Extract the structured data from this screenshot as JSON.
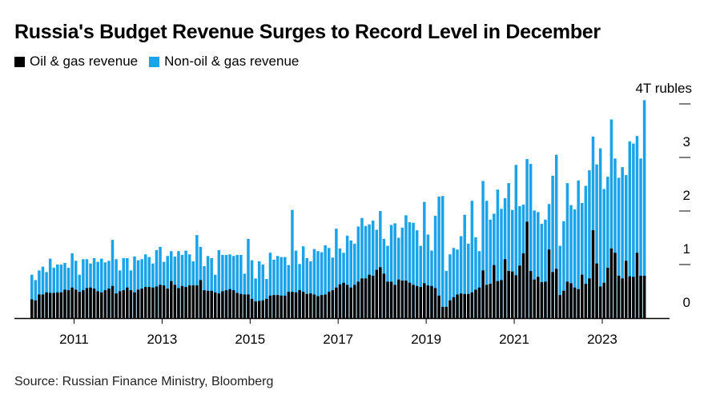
{
  "title": "Russia's Budget Revenue Surges to Record Level in December",
  "source": "Source: Russian Finance Ministry, Bloomberg",
  "chart_data": {
    "type": "bar",
    "stacked": true,
    "title": "Russia's Budget Revenue Surges to Record Level in December",
    "ylabel": "T rubles",
    "ylim": [
      0,
      4.1
    ],
    "y_ticks": [
      {
        "value": 0,
        "label": "0"
      },
      {
        "value": 1,
        "label": "1"
      },
      {
        "value": 2,
        "label": "2"
      },
      {
        "value": 3,
        "label": "3"
      },
      {
        "value": 4,
        "label": "4T rubles"
      }
    ],
    "x_ticks": [
      {
        "index": 12,
        "label": "2011"
      },
      {
        "index": 36,
        "label": "2013"
      },
      {
        "index": 60,
        "label": "2015"
      },
      {
        "index": 84,
        "label": "2017"
      },
      {
        "index": 108,
        "label": "2019"
      },
      {
        "index": 132,
        "label": "2021"
      },
      {
        "index": 156,
        "label": "2023"
      }
    ],
    "frequency": "monthly",
    "legend": "top-left",
    "colors": {
      "oil": "#000000",
      "non_oil": "#1aa3e8"
    },
    "series": [
      {
        "name": "Oil & gas revenue",
        "values": [
          0.35,
          0.33,
          0.44,
          0.44,
          0.48,
          0.47,
          0.47,
          0.48,
          0.48,
          0.53,
          0.52,
          0.57,
          0.53,
          0.49,
          0.52,
          0.56,
          0.57,
          0.55,
          0.5,
          0.48,
          0.52,
          0.55,
          0.6,
          0.46,
          0.5,
          0.52,
          0.57,
          0.52,
          0.48,
          0.53,
          0.55,
          0.58,
          0.58,
          0.57,
          0.59,
          0.62,
          0.61,
          0.55,
          0.69,
          0.62,
          0.56,
          0.6,
          0.58,
          0.61,
          0.61,
          0.61,
          0.71,
          0.52,
          0.51,
          0.51,
          0.48,
          0.46,
          0.5,
          0.52,
          0.54,
          0.52,
          0.47,
          0.45,
          0.44,
          0.44,
          0.36,
          0.31,
          0.32,
          0.33,
          0.36,
          0.42,
          0.43,
          0.43,
          0.42,
          0.42,
          0.49,
          0.49,
          0.48,
          0.52,
          0.49,
          0.45,
          0.46,
          0.44,
          0.41,
          0.43,
          0.44,
          0.49,
          0.52,
          0.57,
          0.63,
          0.66,
          0.62,
          0.57,
          0.62,
          0.68,
          0.74,
          0.74,
          0.81,
          0.79,
          0.9,
          0.95,
          0.83,
          0.68,
          0.68,
          0.62,
          0.72,
          0.7,
          0.7,
          0.66,
          0.62,
          0.6,
          0.58,
          0.65,
          0.61,
          0.6,
          0.56,
          0.42,
          0.21,
          0.21,
          0.33,
          0.39,
          0.44,
          0.46,
          0.45,
          0.45,
          0.48,
          0.53,
          0.57,
          0.89,
          0.62,
          0.64,
          0.99,
          0.69,
          0.71,
          1.1,
          0.88,
          0.87,
          0.8,
          0.98,
          1.21,
          1.8,
          0.88,
          0.72,
          0.77,
          0.67,
          0.68,
          1.28,
          0.86,
          0.92,
          0.43,
          0.51,
          0.68,
          0.65,
          0.57,
          0.54,
          0.81,
          0.64,
          0.74,
          1.64,
          1.02,
          0.59,
          0.66,
          0.94,
          1.3,
          1.22,
          0.79,
          0.74,
          1.07,
          0.78,
          0.77,
          1.22,
          0.79,
          0.79
        ]
      },
      {
        "name": "Non-oil & gas revenue",
        "stacked_totals": [
          0.81,
          0.71,
          0.89,
          0.96,
          0.86,
          1.11,
          0.94,
          1.0,
          1.0,
          1.03,
          0.94,
          1.21,
          1.07,
          0.81,
          1.1,
          1.1,
          1.02,
          1.12,
          1.05,
          1.11,
          1.04,
          1.07,
          1.46,
          1.1,
          0.89,
          1.12,
          1.12,
          0.89,
          1.15,
          1.08,
          1.1,
          1.19,
          1.14,
          1.02,
          1.27,
          1.33,
          1.05,
          1.16,
          1.25,
          1.15,
          1.25,
          1.18,
          1.26,
          1.19,
          1.06,
          1.55,
          1.33,
          0.97,
          1.16,
          1.12,
          0.81,
          1.27,
          1.18,
          1.18,
          1.19,
          1.16,
          1.18,
          1.18,
          0.83,
          1.48,
          1.08,
          0.74,
          1.06,
          1.0,
          0.73,
          1.22,
          1.09,
          1.16,
          1.14,
          1.14,
          0.99,
          2.02,
          1.26,
          1.01,
          1.34,
          1.12,
          1.06,
          1.29,
          1.25,
          1.23,
          1.36,
          1.31,
          1.13,
          1.67,
          1.3,
          1.22,
          1.54,
          1.45,
          1.39,
          1.71,
          1.87,
          1.72,
          1.75,
          1.82,
          1.65,
          2.0,
          1.48,
          1.35,
          1.74,
          1.77,
          1.5,
          1.69,
          1.92,
          1.79,
          1.78,
          1.64,
          1.35,
          2.17,
          1.56,
          1.26,
          1.91,
          2.27,
          2.28,
          0.88,
          1.19,
          1.31,
          1.28,
          1.53,
          1.93,
          1.39,
          2.19,
          1.51,
          1.25,
          2.56,
          2.19,
          1.84,
          1.95,
          2.4,
          2.04,
          2.24,
          2.52,
          2.02,
          2.86,
          2.09,
          2.12,
          2.97,
          2.88,
          2.01,
          1.98,
          1.76,
          1.84,
          2.13,
          2.66,
          3.05,
          1.35,
          1.81,
          2.52,
          2.11,
          2.03,
          2.57,
          2.15,
          2.47,
          2.76,
          3.39,
          2.87,
          3.17,
          2.41,
          2.64,
          3.71,
          2.98,
          2.62,
          2.82,
          2.67,
          3.3,
          3.26,
          3.4,
          2.98,
          4.07
        ]
      }
    ]
  }
}
